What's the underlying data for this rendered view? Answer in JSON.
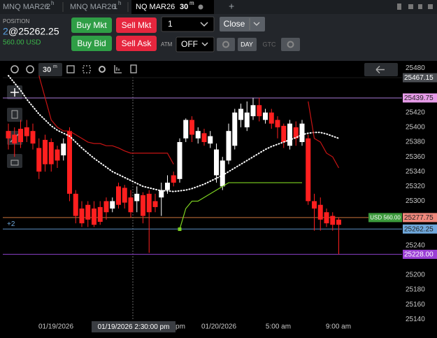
{
  "tabs": [
    {
      "label": "MNQ MAR26",
      "interval": "2",
      "unit": "h"
    },
    {
      "label": "MNQ MAR26",
      "interval": "1",
      "unit": "h"
    },
    {
      "label": "NQ MAR26",
      "interval": "30",
      "unit": "m"
    }
  ],
  "new_tab": "+",
  "position": {
    "title": "POSITION",
    "qty": "2",
    "price": "@25262.25",
    "pnl": "560.00 USD"
  },
  "buttons": {
    "buy_mkt": "Buy Mkt",
    "sell_mkt": "Sell Mkt",
    "buy_bid": "Buy Bid",
    "sell_ask": "Sell Ask",
    "close": "Close"
  },
  "quantity": "1",
  "atm": {
    "label": "ATM",
    "value": "OFF"
  },
  "tif": [
    "DAY",
    "GTC"
  ],
  "toolbar": {
    "interval": "30",
    "unit": "m"
  },
  "chart_data": {
    "type": "candlestick",
    "up_color": "#ffffff",
    "down_color": "#ff1f1f",
    "open": [
      25395,
      25390,
      25398,
      25400,
      25395,
      25372,
      25383,
      25380,
      25370,
      25362,
      25395,
      25310,
      25290,
      25295,
      25290,
      25292,
      25300,
      25290,
      25320,
      25318,
      25305,
      25300,
      25308,
      25310,
      25300,
      25305,
      25315,
      25335,
      25330,
      25385,
      25410,
      25385,
      25392,
      25378,
      25335,
      25320,
      25355,
      25375,
      25410,
      25400,
      25415,
      25430,
      25410,
      25420,
      25410,
      25402,
      25375,
      25400,
      25380,
      25385,
      25300,
      25295,
      25285,
      25280,
      25275
    ],
    "high": [
      25405,
      25400,
      25410,
      25410,
      25405,
      25385,
      25390,
      25385,
      25375,
      25385,
      25400,
      25315,
      25300,
      25300,
      25300,
      25300,
      25305,
      25305,
      25325,
      25322,
      25315,
      25320,
      25312,
      25315,
      25310,
      25325,
      25335,
      25340,
      25385,
      25412,
      25415,
      25400,
      25398,
      25395,
      25378,
      25360,
      25405,
      25425,
      25432,
      25435,
      25440,
      25440,
      25425,
      25425,
      25415,
      25405,
      25410,
      25408,
      25410,
      25390,
      25310,
      25305,
      25290,
      25285,
      25278
    ],
    "low": [
      25370,
      25360,
      25372,
      25380,
      25370,
      25330,
      25340,
      25340,
      25345,
      25355,
      25300,
      25270,
      25265,
      25265,
      25265,
      25268,
      25275,
      25285,
      25290,
      25290,
      25278,
      25285,
      25270,
      25230,
      25285,
      25280,
      25310,
      25320,
      25325,
      25380,
      25380,
      25378,
      25375,
      25372,
      25325,
      25315,
      25350,
      25370,
      25400,
      25395,
      25410,
      25408,
      25405,
      25398,
      25385,
      25372,
      25370,
      25375,
      25375,
      25295,
      25260,
      25260,
      25265,
      25260,
      25228
    ],
    "close": [
      25385,
      25378,
      25380,
      25388,
      25378,
      25340,
      25350,
      25350,
      25355,
      25378,
      25310,
      25280,
      25270,
      25275,
      25268,
      25272,
      25285,
      25300,
      25295,
      25298,
      25285,
      25310,
      25280,
      25285,
      25292,
      25315,
      25325,
      25325,
      25380,
      25410,
      25390,
      25395,
      25380,
      25388,
      25370,
      25355,
      25395,
      25420,
      25425,
      25420,
      25430,
      25415,
      25420,
      25405,
      25400,
      25380,
      25405,
      25385,
      25405,
      25300,
      25290,
      25275,
      25270,
      25268,
      25268
    ],
    "overlays": [
      {
        "color": "#ffffff",
        "style": "dotted",
        "values": [
          25470,
          25460,
          25450,
          25438,
          25428,
          25418,
          25410,
          25402,
          25396,
          25392,
          25388,
          25380,
          25372,
          25365,
          25358,
          25352,
          25346,
          25340,
          25336,
          25332,
          25328,
          25324,
          25320,
          25318,
          25316,
          25314,
          25314,
          25313,
          25314,
          25315,
          25317,
          25320,
          25323,
          25327,
          25331,
          25335,
          25340,
          25345,
          25350,
          25355,
          25360,
          25365,
          25370,
          25374,
          25377,
          25380,
          25383,
          25386,
          25390,
          25392,
          25393,
          25393,
          25391,
          25388,
          25385
        ]
      },
      {
        "color": "#c81414",
        "style": "solid",
        "values": [
          null,
          null,
          null,
          null,
          null,
          25470,
          25440,
          25410,
          25400,
          25395,
          25395,
          25390,
          25385,
          25380,
          25378,
          25378,
          25375,
          25375,
          25372,
          25368,
          25365,
          25365,
          25365,
          25365,
          25365,
          25365,
          25365,
          25350,
          null,
          null,
          null,
          null,
          null,
          null,
          null,
          null,
          null,
          null,
          null,
          null,
          null,
          null,
          null,
          null,
          null,
          null,
          null,
          null,
          null,
          25435,
          25385,
          25380,
          25365,
          25360,
          25345
        ]
      },
      {
        "color": "#7ed321",
        "style": "solid",
        "values": [
          null,
          null,
          null,
          null,
          null,
          null,
          null,
          null,
          null,
          null,
          null,
          null,
          null,
          null,
          null,
          null,
          null,
          null,
          null,
          null,
          null,
          null,
          null,
          null,
          null,
          null,
          null,
          null,
          25262,
          25290,
          25300,
          25300,
          25305,
          25310,
          25315,
          25320,
          25325,
          25325,
          25325,
          25325,
          25325,
          25325,
          25325,
          25325,
          25325,
          25325,
          25325,
          25325,
          25325,
          null,
          null,
          null,
          null,
          null,
          null
        ]
      }
    ],
    "ylim": [
      25127,
      25489
    ],
    "yticks": [
      25480,
      25420,
      25400,
      25380,
      25360,
      25340,
      25320,
      25300,
      25240,
      25200,
      25180,
      25160,
      25140
    ],
    "price_lines": [
      {
        "value": 25467.15,
        "line_color": "#1a1a1a",
        "tag_color": "#4a4d52",
        "text_color": "#ffffff"
      },
      {
        "value": 25439.75,
        "line_color": "#a77ad6",
        "tag_color": "#e69be8",
        "text_color": "#222222"
      },
      {
        "value": 25277.75,
        "line_color": "#c8743a",
        "tag_color": "#f0887c",
        "text_color": "#222222"
      },
      {
        "value": 25262.25,
        "line_color": "#5d8fc4",
        "tag_color": "#6fa8dc",
        "text_color": "#222222"
      },
      {
        "value": 25228,
        "label": "25228.00",
        "line_color": "#8a3fc8",
        "tag_color": "#9b3fd4",
        "text_color": "#ffffff"
      }
    ],
    "pnl_tag": {
      "label": "USD 560.00",
      "color": "#3c9a3c"
    },
    "position_marker": "+2",
    "xlabels": [
      "01/19/2026",
      "pm",
      "01/20/2026",
      "5:00 am",
      "9:00 am"
    ],
    "crosshair_label": "01/19/2026 2:30:00 pm"
  }
}
